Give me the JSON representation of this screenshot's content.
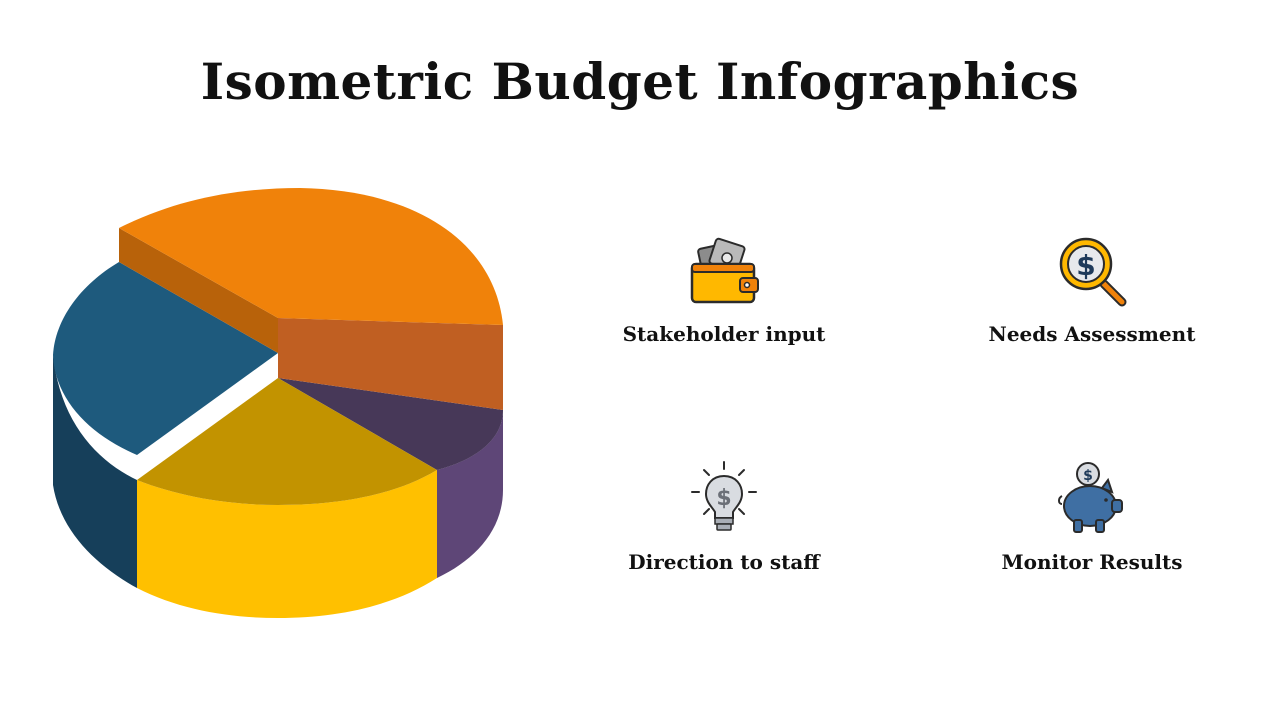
{
  "title": "Isometric Budget Infographics",
  "pie": {
    "segments": [
      {
        "color_top": "#F0820A",
        "color_side": "#C05F22",
        "color_edge": "#B8620A"
      },
      {
        "color_top": "#1E5A7D",
        "color_side": "#163F5A"
      },
      {
        "color_top": "#C29300",
        "color_side": "#FFC000"
      },
      {
        "color_top": "#473858",
        "color_side": "#5E4677"
      }
    ]
  },
  "items": [
    {
      "label": "Stakeholder input",
      "icon": "wallet-icon"
    },
    {
      "label": "Needs Assessment",
      "icon": "magnifier-dollar-icon"
    },
    {
      "label": "Direction to staff",
      "icon": "lightbulb-dollar-icon"
    },
    {
      "label": "Monitor Results",
      "icon": "piggy-bank-icon"
    }
  ]
}
